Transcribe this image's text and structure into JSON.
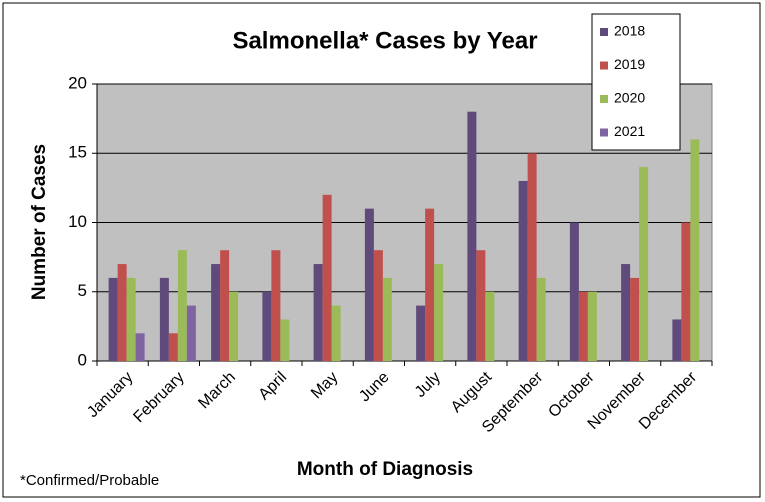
{
  "chart_data": {
    "type": "bar",
    "title": "Salmonella* Cases by Year",
    "y_label": "Number of Cases",
    "x_label": "Month of Diagnosis",
    "footnote": "*Confirmed/Probable",
    "categories": [
      "January",
      "February",
      "March",
      "April",
      "May",
      "June",
      "July",
      "August",
      "September",
      "October",
      "November",
      "December"
    ],
    "series": [
      {
        "name": "2018",
        "color": "#604a7b",
        "values": [
          6,
          6,
          7,
          5,
          7,
          11,
          4,
          18,
          13,
          10,
          7,
          3
        ]
      },
      {
        "name": "2019",
        "color": "#c0504d",
        "values": [
          7,
          2,
          8,
          8,
          12,
          8,
          11,
          8,
          15,
          5,
          6,
          10
        ]
      },
      {
        "name": "2020",
        "color": "#9bbb59",
        "values": [
          6,
          8,
          5,
          3,
          4,
          6,
          7,
          5,
          6,
          5,
          14,
          16
        ]
      },
      {
        "name": "2021",
        "color": "#8064a2",
        "values": [
          2,
          4,
          null,
          null,
          null,
          null,
          null,
          null,
          null,
          null,
          null,
          null
        ]
      }
    ],
    "ylim": [
      0,
      20
    ],
    "yticks": [
      0,
      5,
      10,
      15,
      20
    ],
    "grid": true,
    "legend": "top-right"
  }
}
